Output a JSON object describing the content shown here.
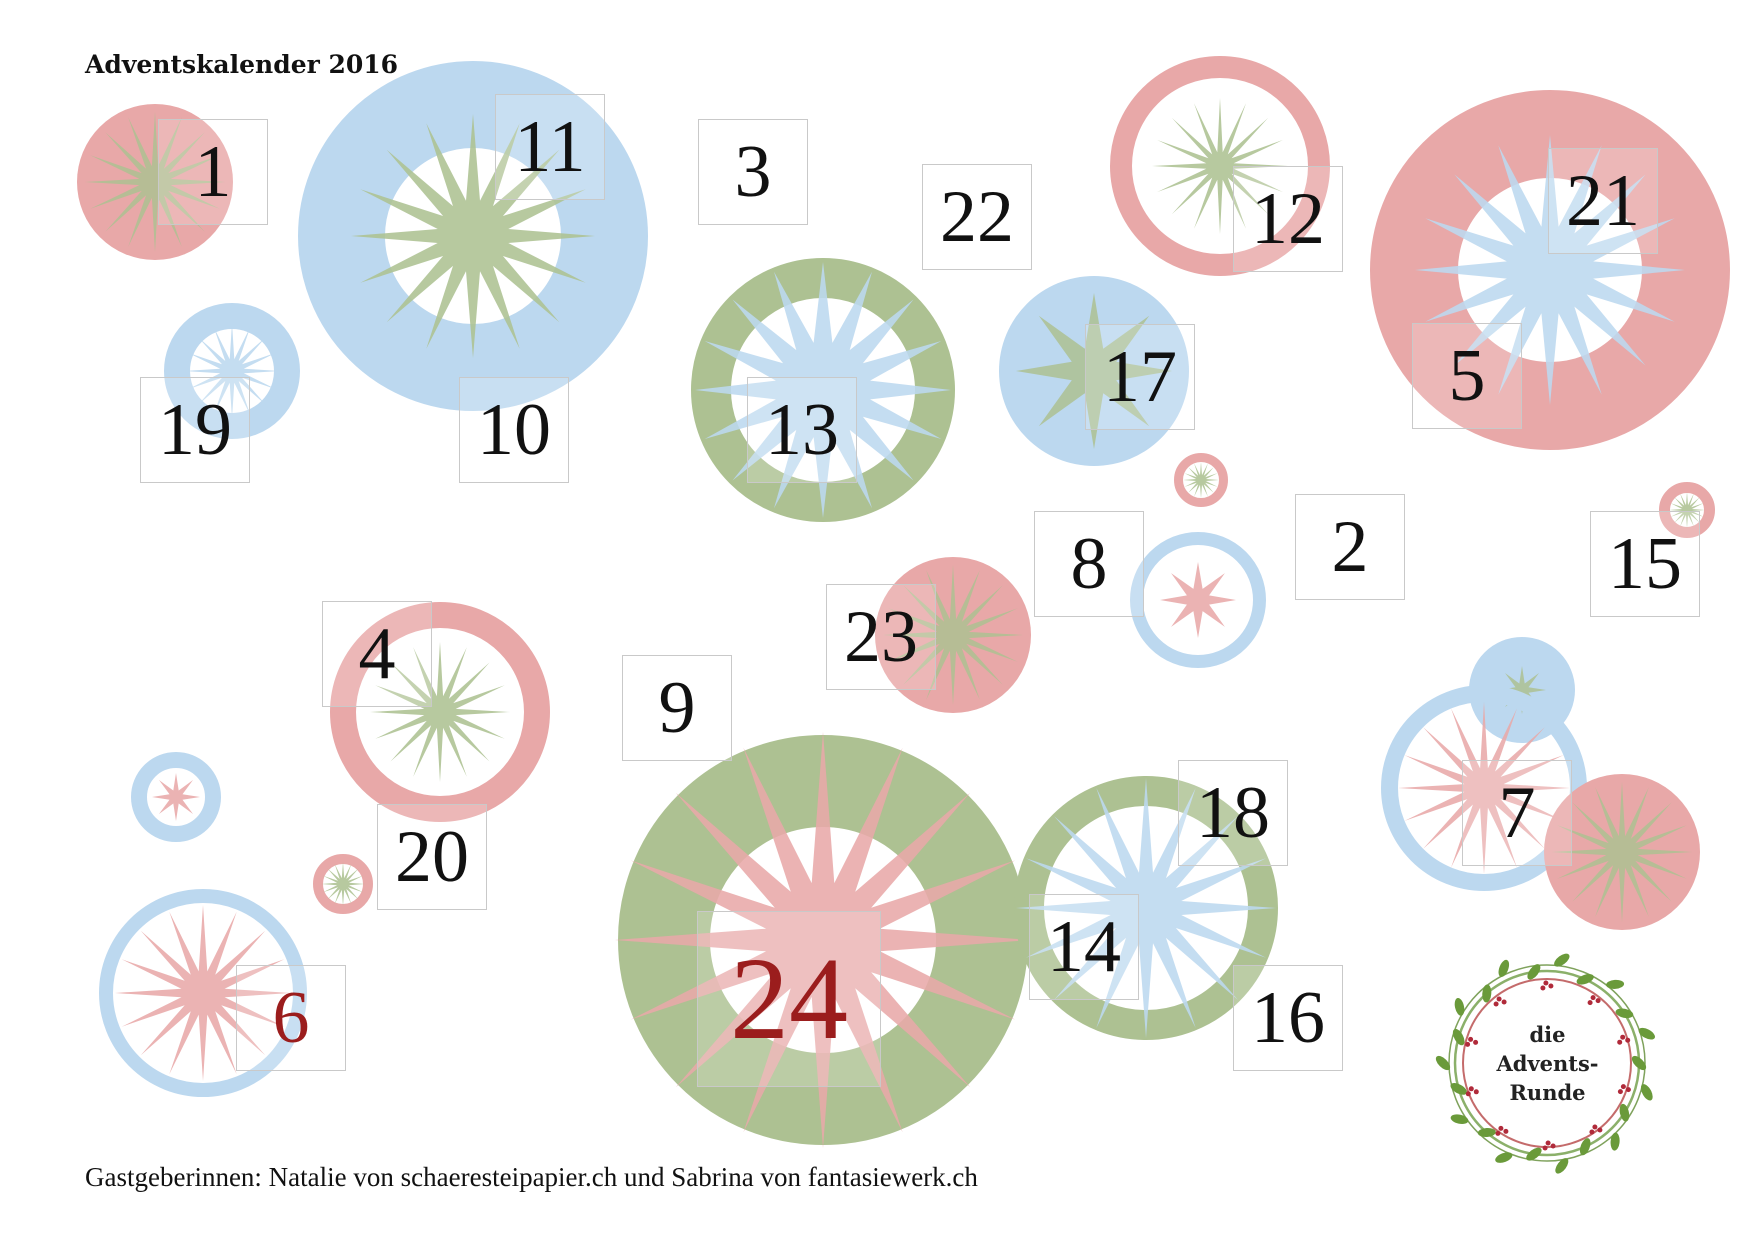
{
  "title": "Adventskalender 2016",
  "footer": "Gastgeberinnen: Natalie von schaeresteipapier.ch und Sabrina von fantasiewerk.ch",
  "logo": {
    "line1": "die",
    "line2": "Advents-",
    "line3": "Runde"
  },
  "colors": {
    "red": "#e8a8a8",
    "blue": "#bcd8ef",
    "green": "#adc192",
    "number": "#111111",
    "highlight": "#9b1d1d"
  },
  "doors": [
    {
      "label": "1"
    },
    {
      "label": "2"
    },
    {
      "label": "3"
    },
    {
      "label": "4"
    },
    {
      "label": "5"
    },
    {
      "label": "6"
    },
    {
      "label": "7"
    },
    {
      "label": "8"
    },
    {
      "label": "9"
    },
    {
      "label": "10"
    },
    {
      "label": "11"
    },
    {
      "label": "12"
    },
    {
      "label": "13"
    },
    {
      "label": "14"
    },
    {
      "label": "15"
    },
    {
      "label": "16"
    },
    {
      "label": "17"
    },
    {
      "label": "18"
    },
    {
      "label": "19"
    },
    {
      "label": "20"
    },
    {
      "label": "21"
    },
    {
      "label": "22"
    },
    {
      "label": "23"
    },
    {
      "label": "24"
    }
  ]
}
